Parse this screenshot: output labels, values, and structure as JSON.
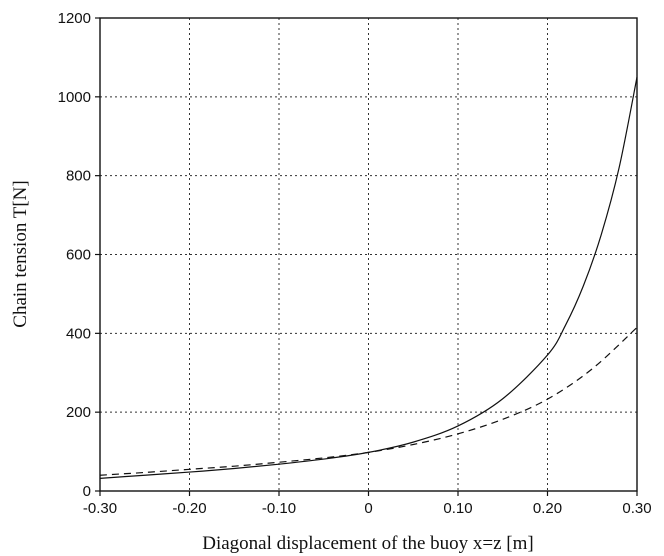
{
  "chart_data": {
    "type": "line",
    "xlabel": "Diagonal displacement of the buoy  x=z [m]",
    "ylabel": "Chain tension T[N]",
    "xlim": [
      -0.3,
      0.3
    ],
    "ylim": [
      0,
      1200
    ],
    "x_ticks": [
      "-0.30",
      "-0.20",
      "-0.10",
      "0",
      "0.10",
      "0.20",
      "0.30"
    ],
    "y_ticks": [
      "0",
      "200",
      "400",
      "600",
      "800",
      "1000",
      "1200"
    ],
    "grid": true,
    "series": [
      {
        "style": "solid",
        "color": "#111111",
        "x": [
          -0.3,
          -0.25,
          -0.2,
          -0.15,
          -0.1,
          -0.05,
          0.0,
          0.05,
          0.1,
          0.15,
          0.2,
          0.22,
          0.24,
          0.26,
          0.28,
          0.3
        ],
        "y": [
          32,
          40,
          48,
          57,
          68,
          81,
          98,
          124,
          165,
          234,
          345,
          420,
          520,
          650,
          820,
          1050
        ]
      },
      {
        "style": "dashed",
        "color": "#111111",
        "x": [
          -0.3,
          -0.25,
          -0.2,
          -0.15,
          -0.1,
          -0.05,
          0.0,
          0.05,
          0.1,
          0.15,
          0.2,
          0.25,
          0.3
        ],
        "y": [
          40,
          47,
          55,
          63,
          73,
          84,
          98,
          118,
          145,
          182,
          233,
          310,
          415
        ]
      }
    ]
  }
}
